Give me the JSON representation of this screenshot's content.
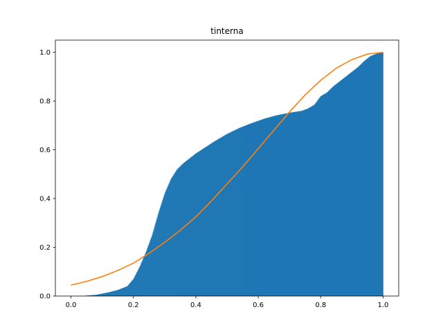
{
  "chart_data": {
    "type": "bar",
    "title": "tinterna",
    "xlabel": "",
    "ylabel": "",
    "xlim": [
      -0.05,
      1.05
    ],
    "ylim": [
      0,
      1.05
    ],
    "x_ticks": [
      0.0,
      0.2,
      0.4,
      0.6,
      0.8,
      1.0
    ],
    "x_tick_labels": [
      "0.0",
      "0.2",
      "0.4",
      "0.6",
      "0.8",
      "1.0"
    ],
    "y_ticks": [
      0.0,
      0.2,
      0.4,
      0.6,
      0.8,
      1.0
    ],
    "y_tick_labels": [
      "0.0",
      "0.2",
      "0.4",
      "0.6",
      "0.8",
      "1.0"
    ],
    "grid": false,
    "series": [
      {
        "type": "cumulative-histogram",
        "color": "#1f77b4",
        "bin_range": [
          0.0,
          1.0
        ],
        "curve_x": [
          0.0,
          0.04,
          0.05,
          0.08,
          0.1,
          0.12,
          0.15,
          0.18,
          0.2,
          0.22,
          0.24,
          0.26,
          0.28,
          0.3,
          0.32,
          0.34,
          0.36,
          0.38,
          0.4,
          0.43,
          0.46,
          0.5,
          0.54,
          0.58,
          0.62,
          0.66,
          0.7,
          0.74,
          0.76,
          0.78,
          0.8,
          0.82,
          0.84,
          0.86,
          0.88,
          0.9,
          0.92,
          0.94,
          0.96,
          0.98,
          1.0
        ],
        "curve_y": [
          0.0,
          0.0,
          0.002,
          0.005,
          0.01,
          0.015,
          0.025,
          0.04,
          0.07,
          0.12,
          0.18,
          0.25,
          0.34,
          0.42,
          0.48,
          0.52,
          0.545,
          0.565,
          0.585,
          0.61,
          0.635,
          0.665,
          0.69,
          0.71,
          0.728,
          0.742,
          0.752,
          0.76,
          0.77,
          0.785,
          0.82,
          0.835,
          0.86,
          0.88,
          0.9,
          0.92,
          0.94,
          0.965,
          0.985,
          0.995,
          1.0
        ]
      },
      {
        "type": "line",
        "color": "#ff7f0e",
        "x": [
          0.0,
          0.05,
          0.1,
          0.15,
          0.2,
          0.25,
          0.3,
          0.35,
          0.4,
          0.45,
          0.5,
          0.55,
          0.6,
          0.65,
          0.7,
          0.75,
          0.8,
          0.85,
          0.9,
          0.95,
          1.0
        ],
        "y": [
          0.045,
          0.06,
          0.08,
          0.105,
          0.135,
          0.175,
          0.22,
          0.27,
          0.325,
          0.39,
          0.46,
          0.53,
          0.605,
          0.68,
          0.755,
          0.825,
          0.885,
          0.935,
          0.97,
          0.993,
          1.0
        ]
      }
    ]
  }
}
